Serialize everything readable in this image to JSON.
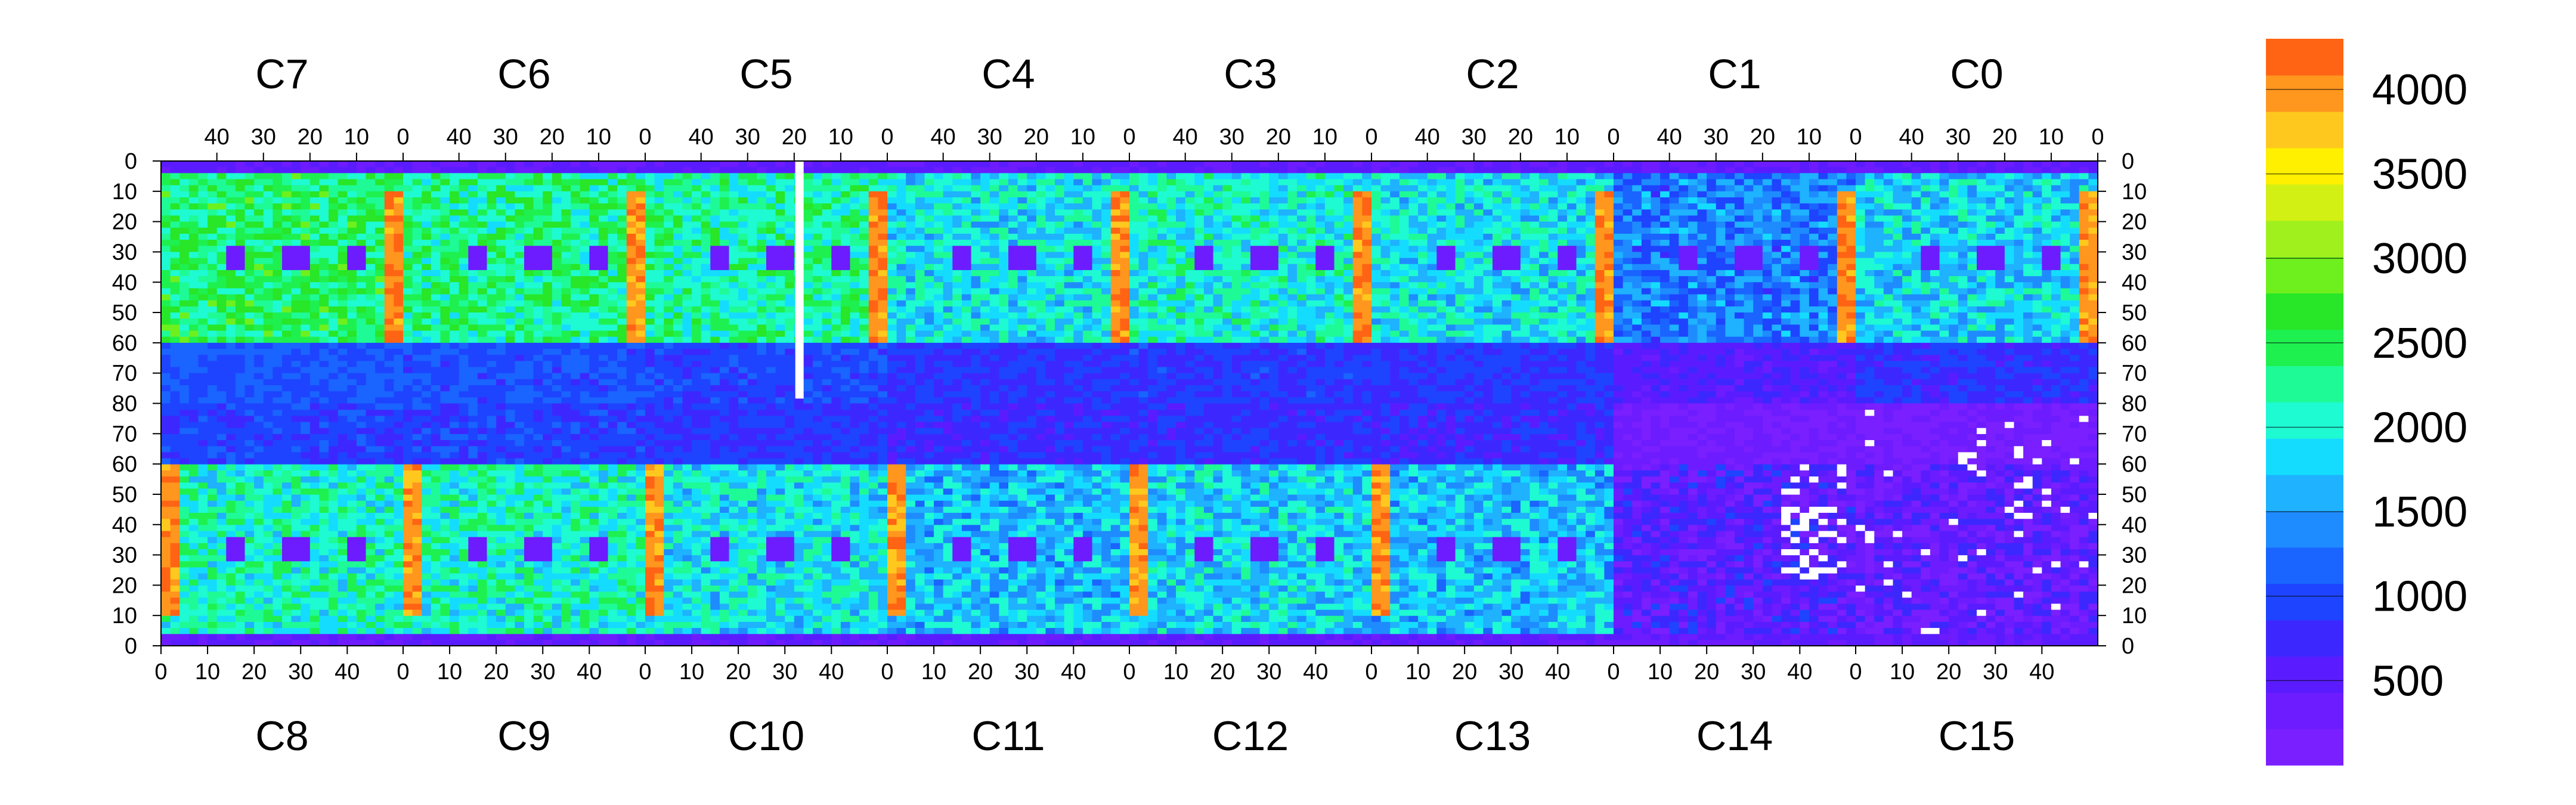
{
  "chart_data": {
    "type": "heatmap",
    "title": "",
    "xlabel": "",
    "ylabel": "",
    "top_chips": [
      "C7",
      "C6",
      "C5",
      "C4",
      "C3",
      "C2",
      "C1",
      "C0"
    ],
    "bottom_chips": [
      "C8",
      "C9",
      "C10",
      "C11",
      "C12",
      "C13",
      "C14",
      "C15"
    ],
    "top_x_ticks": [
      "40",
      "30",
      "20",
      "10",
      "0"
    ],
    "bottom_x_ticks": [
      "0",
      "10",
      "20",
      "30",
      "40"
    ],
    "y_ticks_top_half": [
      "0",
      "10",
      "20",
      "30",
      "40",
      "50",
      "60",
      "70",
      "80"
    ],
    "y_ticks_bottom_half": [
      "70",
      "60",
      "50",
      "40",
      "30",
      "20",
      "10",
      "0"
    ],
    "columns_per_chip": 52,
    "rows_per_chip": 80,
    "zlim": [
      0,
      4300
    ],
    "colorbar_ticks": [
      "500",
      "1000",
      "1500",
      "2000",
      "2500",
      "3000",
      "3500",
      "4000"
    ],
    "colorbar_tick_values": [
      500,
      1000,
      1500,
      2000,
      2500,
      3000,
      3500,
      4000
    ],
    "colorbar_levels": 20,
    "palette": [
      "#7a1fff",
      "#6c1cff",
      "#5a1cff",
      "#3c28ff",
      "#1e44ff",
      "#1a64ff",
      "#1e8cff",
      "#1eb2ff",
      "#14dcff",
      "#1efad2",
      "#1efa96",
      "#1ef050",
      "#28e628",
      "#6ef01e",
      "#a0f01e",
      "#d2f014",
      "#fff000",
      "#ffc81e",
      "#ff961e",
      "#ff6414",
      "#ff1e1e"
    ],
    "chip_levels": {
      "C7": 2400,
      "C6": 2300,
      "C5": 2200,
      "C4": 1900,
      "C3": 2000,
      "C2": 1900,
      "C1": 1300,
      "C0": 1800,
      "C8": 2100,
      "C9": 2100,
      "C10": 1900,
      "C11": 1700,
      "C12": 1800,
      "C13": 1700,
      "C14": 500,
      "C15": 400
    },
    "hot_columns_value": 4000,
    "missing_value_color": "#ffffff"
  }
}
